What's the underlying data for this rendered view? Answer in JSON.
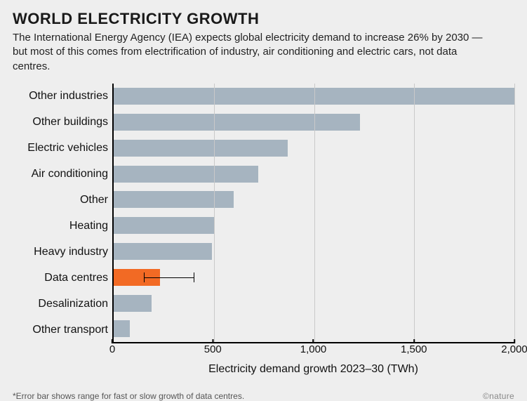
{
  "title": "WORLD ELECTRICITY GROWTH",
  "subtitle": "The International Energy Agency (IEA) expects global electricity demand to increase 26% by 2030 — but most of this comes from electrification of industry, air conditioning and electric cars, not data centres.",
  "chart": {
    "type": "bar-horizontal",
    "background_color": "#eeeeee",
    "default_bar_color": "#a6b4c0",
    "highlight_bar_color": "#f26a24",
    "axis_color": "#000000",
    "grid_color": "#c9c9c9",
    "text_color": "#111111",
    "font_size_labels": 16,
    "font_size_title": 22,
    "x_axis_label": "Electricity demand growth 2023–30 (TWh)",
    "x_min": 0,
    "x_max": 2000,
    "x_tick_step": 500,
    "x_tick_labels": [
      "0",
      "500",
      "1,000",
      "1,500",
      "2,000"
    ],
    "categories": [
      {
        "label": "Other industries",
        "value": 2000,
        "highlight": false
      },
      {
        "label": "Other buildings",
        "value": 1230,
        "highlight": false
      },
      {
        "label": "Electric vehicles",
        "value": 870,
        "highlight": false
      },
      {
        "label": "Air conditioning",
        "value": 720,
        "highlight": false
      },
      {
        "label": "Other",
        "value": 600,
        "highlight": false
      },
      {
        "label": "Heating",
        "value": 500,
        "highlight": false
      },
      {
        "label": "Heavy industry",
        "value": 490,
        "highlight": false
      },
      {
        "label": "Data centres",
        "value": 230,
        "highlight": true,
        "err_low": 150,
        "err_high": 400
      },
      {
        "label": "Desalinization",
        "value": 190,
        "highlight": false
      },
      {
        "label": "Other transport",
        "value": 80,
        "highlight": false
      }
    ]
  },
  "footnote": "*Error bar shows range for fast or slow growth of data centres.",
  "credit": "©nature"
}
